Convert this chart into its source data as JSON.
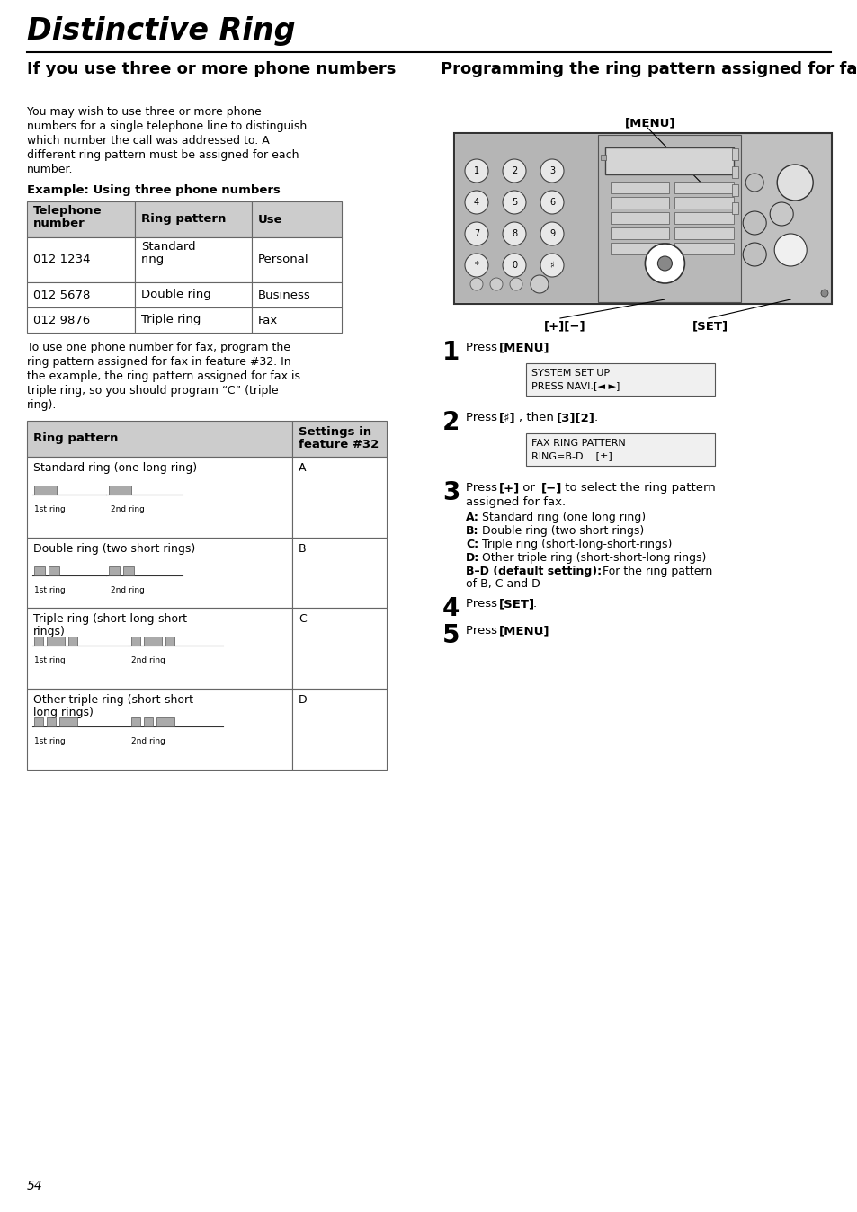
{
  "title": "Distinctive Ring",
  "page_number": "54",
  "left_heading": "If you use three or more phone numbers",
  "right_heading": "Programming the ring pattern assigned for fax",
  "body_text": "You may wish to use three or more phone\nnumbers for a single telephone line to distinguish\nwhich number the call was addressed to. A\ndifferent ring pattern must be assigned for each\nnumber.",
  "example_label": "Example: Using three phone numbers",
  "table1_col_headers": [
    "Telephone\nnumber",
    "Ring pattern",
    "Use"
  ],
  "table1_rows": [
    [
      "012 1234",
      "Standard\nring",
      "Personal"
    ],
    [
      "012 5678",
      "Double ring",
      "Business"
    ],
    [
      "012 9876",
      "Triple ring",
      "Fax"
    ]
  ],
  "mid_text": "To use one phone number for fax, program the\nring pattern assigned for fax in feature #32. In\nthe example, the ring pattern assigned for fax is\ntriple ring, so you should program “C” (triple\nring).",
  "table2_col_headers": [
    "Ring pattern",
    "Settings in\nfeature #32"
  ],
  "table2_rows": [
    [
      "Standard ring (one long ring)",
      "A"
    ],
    [
      "Double ring (two short rings)",
      "B"
    ],
    [
      "Triple ring (short-long-short\nrings)",
      "C"
    ],
    [
      "Other triple ring (short-short-\nlong rings)",
      "D"
    ]
  ],
  "screen1": "SYSTEM SET UP\nPRESS NAVI.[◄ ►]",
  "screen2": "FAX RING PATTERN\nRING=B-D    [±]",
  "menu_label": "[MENU]",
  "set_label": "[SET]",
  "plusminus_label": "[+][−]",
  "step1_text": "Press ",
  "step1_bold": "[MENU]",
  "step1_end": ".",
  "step2_text": "Press ",
  "step2_bold1": "[#]",
  "step2_mid": ", then ",
  "step2_bold2": "[3][2]",
  "step2_end": ".",
  "step3_intro": "Press ",
  "step3_bold1": "[+]",
  "step3_mid": " or ",
  "step3_bold2": "[−]",
  "step3_end": " to select the ring pattern\nassigned for fax.",
  "step3_lines": [
    [
      "bold",
      "A:"
    ],
    [
      "normal",
      " Standard ring (one long ring)"
    ],
    [
      "bold",
      "B:"
    ],
    [
      "normal",
      " Double ring (two short rings)"
    ],
    [
      "bold",
      "C:"
    ],
    [
      "normal",
      " Triple ring (short-long-short-rings)"
    ],
    [
      "bold",
      "D:"
    ],
    [
      "normal",
      " Other triple ring (short-short-long rings)"
    ],
    [
      "bold",
      "B–D (default setting):"
    ],
    [
      "normal",
      " For the ring pattern\nof B, C and D"
    ]
  ],
  "step4_text": "Press ",
  "step4_bold": "[SET]",
  "step4_end": ".",
  "step5_text": "Press ",
  "step5_bold": "[MENU]",
  "step5_end": ".",
  "bg_color": "#ffffff",
  "header_bg": "#cccccc",
  "table_border": "#666666",
  "device_body": "#c0c0c0",
  "device_dark": "#888888",
  "device_panel": "#b8b8b8",
  "screen_bg": "#e8e8e8",
  "pulse_color": "#aaaaaa"
}
